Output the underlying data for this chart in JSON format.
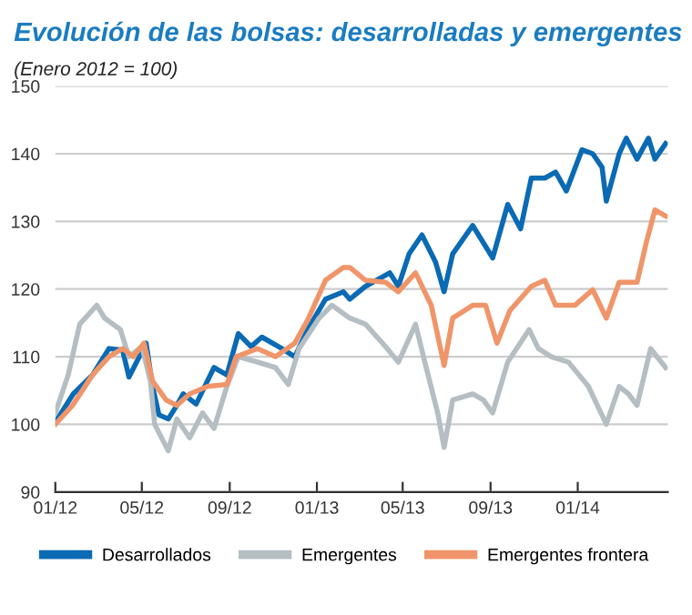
{
  "chart_data": {
    "type": "line",
    "title": "Evolución de las bolsas: desarrolladas y emergentes",
    "subtitle": "(Enero 2012 = 100)",
    "xlim": [
      "2012-01-01",
      "2014-05-07"
    ],
    "xticks": [
      {
        "value": "2012-01-01",
        "label": "01/12"
      },
      {
        "value": "2012-05-01",
        "label": "05/12"
      },
      {
        "value": "2012-09-01",
        "label": "09/12"
      },
      {
        "value": "2013-01-01",
        "label": "01/13"
      },
      {
        "value": "2013-05-01",
        "label": "05/13"
      },
      {
        "value": "2013-09-01",
        "label": "09/13"
      },
      {
        "value": "2014-01-01",
        "label": "01/14"
      }
    ],
    "ylim": [
      90,
      150
    ],
    "yticks": [
      90,
      100,
      110,
      120,
      130,
      140,
      150
    ],
    "grid": "y",
    "legend": "bottom",
    "line_style": "solid",
    "series": [
      {
        "name": "Desarrollados",
        "color": "#0a6ab4",
        "x": [
          "2012-01-01",
          "2012-01-26",
          "2012-02-22",
          "2012-03-16",
          "2012-04-04",
          "2012-04-13",
          "2012-05-07",
          "2012-05-16",
          "2012-05-25",
          "2012-06-07",
          "2012-06-19",
          "2012-06-28",
          "2012-07-16",
          "2012-08-10",
          "2012-08-28",
          "2012-09-13",
          "2012-10-01",
          "2012-10-16",
          "2012-11-13",
          "2012-12-01",
          "2012-12-19",
          "2013-01-13",
          "2013-02-07",
          "2013-02-16",
          "2013-03-10",
          "2013-04-13",
          "2013-04-25",
          "2013-05-10",
          "2013-05-28",
          "2013-06-16",
          "2013-06-28",
          "2013-07-10",
          "2013-08-07",
          "2013-09-04",
          "2013-09-25",
          "2013-10-13",
          "2013-10-28",
          "2013-11-16",
          "2013-12-01",
          "2013-12-16",
          "2014-01-07",
          "2014-01-22",
          "2014-02-04",
          "2014-02-10",
          "2014-02-28",
          "2014-03-10",
          "2014-03-25",
          "2014-04-10",
          "2014-04-19",
          "2014-05-04"
        ],
        "values": [
          100.3,
          104.5,
          107.3,
          111.2,
          111,
          107,
          112,
          105.6,
          101.4,
          100.8,
          102.8,
          104.5,
          103,
          108.4,
          107.3,
          113.4,
          111.5,
          112.9,
          111.2,
          110,
          114,
          118.5,
          119.6,
          118.5,
          120.4,
          122.4,
          120.4,
          125.2,
          128,
          124,
          119.6,
          125.2,
          129.4,
          124.6,
          132.5,
          128.9,
          136.4,
          136.4,
          137.3,
          134.5,
          140.6,
          140,
          138,
          133,
          140,
          142.3,
          139.2,
          142.3,
          139.2,
          141.5
        ]
      },
      {
        "name": "Emergentes",
        "color": "#b4bec3",
        "x": [
          "2012-01-01",
          "2012-01-19",
          "2012-02-04",
          "2012-02-28",
          "2012-03-10",
          "2012-04-01",
          "2012-04-13",
          "2012-05-01",
          "2012-05-13",
          "2012-05-19",
          "2012-06-07",
          "2012-06-19",
          "2012-07-07",
          "2012-07-25",
          "2012-08-10",
          "2012-08-28",
          "2012-09-13",
          "2012-10-10",
          "2012-11-04",
          "2012-11-22",
          "2012-12-07",
          "2013-01-04",
          "2013-01-22",
          "2013-02-16",
          "2013-03-10",
          "2013-04-07",
          "2013-04-25",
          "2013-05-19",
          "2013-06-01",
          "2013-06-19",
          "2013-06-28",
          "2013-07-10",
          "2013-08-07",
          "2013-08-22",
          "2013-09-04",
          "2013-09-25",
          "2013-10-25",
          "2013-11-07",
          "2013-11-25",
          "2013-12-19",
          "2014-01-16",
          "2014-02-10",
          "2014-02-28",
          "2014-03-13",
          "2014-03-25",
          "2014-04-13",
          "2014-05-04"
        ],
        "values": [
          101.7,
          107.3,
          114.8,
          117.6,
          115.7,
          114,
          110,
          111.5,
          106.4,
          100,
          96.1,
          100.8,
          98,
          101.7,
          99.4,
          105.6,
          110,
          109.2,
          108.4,
          105.9,
          111.2,
          115.7,
          117.6,
          115.7,
          114.8,
          111.5,
          109.2,
          114.8,
          109.2,
          101.7,
          96.6,
          103.6,
          104.5,
          103.6,
          101.7,
          109.2,
          114,
          111.2,
          110,
          109.2,
          105.6,
          100,
          105.6,
          104.5,
          102.8,
          111.2,
          108.4
        ]
      },
      {
        "name": "Emergentes frontera",
        "color": "#f0956a",
        "x": [
          "2012-01-01",
          "2012-01-25",
          "2012-02-22",
          "2012-03-16",
          "2012-04-04",
          "2012-04-19",
          "2012-05-04",
          "2012-05-16",
          "2012-06-04",
          "2012-06-19",
          "2012-07-07",
          "2012-08-01",
          "2012-08-28",
          "2012-09-10",
          "2012-10-10",
          "2012-11-04",
          "2012-12-01",
          "2012-12-19",
          "2013-01-13",
          "2013-02-07",
          "2013-02-16",
          "2013-03-10",
          "2013-04-07",
          "2013-04-25",
          "2013-05-19",
          "2013-06-10",
          "2013-06-28",
          "2013-07-10",
          "2013-08-07",
          "2013-08-25",
          "2013-09-10",
          "2013-09-28",
          "2013-10-28",
          "2013-11-16",
          "2013-12-01",
          "2013-12-28",
          "2014-01-22",
          "2014-02-10",
          "2014-02-28",
          "2014-03-25",
          "2014-04-07",
          "2014-04-19",
          "2014-05-04"
        ],
        "values": [
          100,
          102.8,
          107.3,
          110,
          111.2,
          110,
          112,
          106.4,
          103.6,
          102.8,
          104.5,
          105.6,
          105.9,
          110,
          111.2,
          110,
          112,
          115.4,
          121.3,
          123.2,
          123.2,
          121.3,
          121,
          119.6,
          122.4,
          117.6,
          108.7,
          115.7,
          117.6,
          117.6,
          112,
          116.8,
          120.4,
          121.3,
          117.6,
          117.6,
          119.9,
          115.7,
          121,
          121,
          126.9,
          131.7,
          130.8
        ]
      }
    ]
  }
}
